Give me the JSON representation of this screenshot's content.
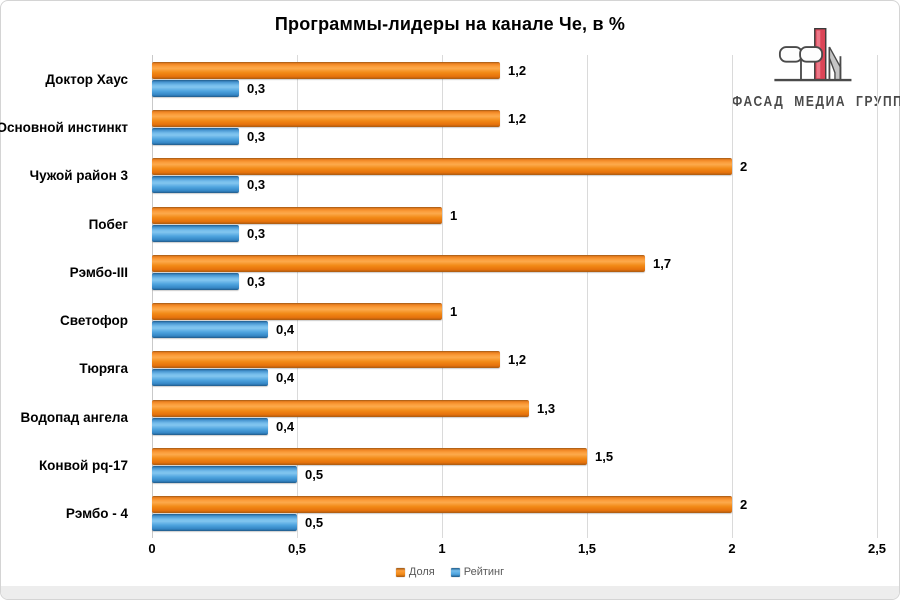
{
  "title": "Программы-лидеры на канале Че, в %",
  "logo": {
    "text": "ФАСАД МЕДИА ГРУПП"
  },
  "legend": [
    {
      "label": "Доля",
      "color": "#EE7D22"
    },
    {
      "label": "Рейтинг",
      "color": "#4A9FD8"
    }
  ],
  "chart_data": {
    "type": "bar",
    "orientation": "horizontal",
    "title": "Программы-лидеры на канале Че, в %",
    "categories": [
      "Доктор Хаус",
      "Основной инстинкт",
      "Чужой район 3",
      "Побег",
      "Рэмбо-III",
      "Светофор",
      "Тюряга",
      "Водопад ангела",
      "Конвой pq-17",
      "Рэмбо - 4"
    ],
    "series": [
      {
        "name": "Доля",
        "color": "#EE7D22",
        "values": [
          1.2,
          1.2,
          2,
          1,
          1.7,
          1,
          1.2,
          1.3,
          1.5,
          2
        ],
        "labels": [
          "1,2",
          "1,2",
          "2",
          "1",
          "1,7",
          "1",
          "1,2",
          "1,3",
          "1,5",
          "2"
        ]
      },
      {
        "name": "Рейтинг",
        "color": "#4A9FD8",
        "values": [
          0.3,
          0.3,
          0.3,
          0.3,
          0.3,
          0.4,
          0.4,
          0.4,
          0.5,
          0.5
        ],
        "labels": [
          "0,3",
          "0,3",
          "0,3",
          "0,3",
          "0,3",
          "0,4",
          "0,4",
          "0,4",
          "0,5",
          "0,5"
        ]
      }
    ],
    "xlim": [
      0,
      2.5
    ],
    "xticks": [
      "0",
      "0,5",
      "1",
      "1,5",
      "2",
      "2,5"
    ],
    "grid": true,
    "legend_position": "bottom"
  }
}
